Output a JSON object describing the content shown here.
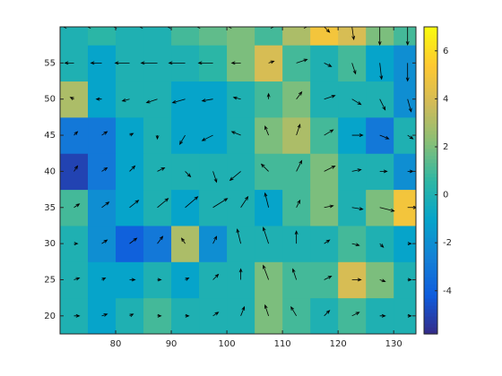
{
  "chart_data": {
    "type": "heatmap",
    "x": [
      72.5,
      77.5,
      82.5,
      87.5,
      92.5,
      97.5,
      102.5,
      107.5,
      112.5,
      117.5,
      122.5,
      127.5,
      132.5
    ],
    "y": [
      20,
      25,
      30,
      35,
      40,
      45,
      50,
      55,
      60
    ],
    "z": [
      [
        0,
        -1,
        0,
        1,
        0,
        0,
        0,
        2,
        1,
        0,
        1,
        0,
        0
      ],
      [
        0,
        -1,
        -1,
        0,
        -1,
        0,
        0,
        2,
        1,
        1,
        4,
        2,
        0
      ],
      [
        0,
        -2,
        -4,
        -3,
        3,
        -2,
        0,
        0,
        0,
        0,
        1,
        0,
        -1
      ],
      [
        1,
        -2,
        -1,
        0,
        -1,
        0,
        0,
        -1,
        1,
        2,
        0,
        2,
        5
      ],
      [
        -5,
        -3,
        -1,
        0,
        0,
        0,
        0,
        1,
        1,
        2,
        0,
        0,
        -2
      ],
      [
        -3,
        -3,
        -1,
        0,
        -1,
        -1,
        0,
        2,
        3,
        1,
        -1,
        -3,
        0
      ],
      [
        3,
        -1,
        0,
        0,
        -1,
        -1,
        0,
        1,
        2,
        0,
        0,
        0,
        -2
      ],
      [
        0,
        -1,
        0,
        0,
        0,
        0.5,
        2,
        4,
        1,
        0,
        1,
        -1,
        -2
      ],
      [
        0,
        0.5,
        0,
        0,
        1,
        1.5,
        2,
        1,
        3,
        5,
        4,
        2,
        1
      ]
    ],
    "u": [
      [
        0.3,
        0.3,
        0.2,
        0.2,
        0.2,
        0.3,
        0.2,
        -0.2,
        -0.3,
        0.3,
        0.4,
        0.3,
        0.2
      ],
      [
        0.3,
        0.2,
        0.3,
        0.2,
        0.2,
        0.3,
        0,
        -0.3,
        -0.2,
        0.4,
        0.5,
        0.3,
        0.2
      ],
      [
        0.2,
        0.3,
        0.4,
        0.3,
        -0.2,
        0.2,
        -0.2,
        -0.3,
        0,
        0.3,
        0.4,
        0.2,
        0.2
      ],
      [
        0.3,
        0.4,
        0.5,
        0.6,
        0.7,
        0.8,
        0.4,
        -0.2,
        0.2,
        0.5,
        0.6,
        0.8,
        0.5
      ],
      [
        0.2,
        0.3,
        0.3,
        0.4,
        0.3,
        0.2,
        -0.6,
        -0.4,
        0.3,
        0.6,
        0.5,
        0.4,
        0.3
      ],
      [
        0.2,
        0.3,
        0.2,
        0,
        -0.3,
        -0.6,
        -0.5,
        -0.2,
        0.2,
        0.5,
        0.6,
        0.5,
        0.3
      ],
      [
        -0.2,
        -0.3,
        -0.4,
        -0.6,
        -0.7,
        -0.6,
        -0.4,
        0,
        0.3,
        0.6,
        0.5,
        0.3,
        0.2
      ],
      [
        -0.5,
        -0.6,
        -0.8,
        -0.9,
        -0.9,
        -0.8,
        -0.5,
        0.3,
        0.6,
        0.4,
        0.2,
        0.1,
        0
      ],
      [
        -0.6,
        -0.8,
        -0.9,
        -1,
        -1,
        -0.9,
        -0.7,
        0.3,
        0.6,
        0.3,
        0.1,
        0,
        0
      ]
    ],
    "v": [
      [
        0,
        0.1,
        0.1,
        0,
        0,
        0.2,
        0.5,
        0.6,
        0.5,
        0.3,
        0.2,
        0,
        0
      ],
      [
        0.1,
        0.1,
        0,
        0,
        0.1,
        0.3,
        0.6,
        0.8,
        0.6,
        0.2,
        0,
        -0.1,
        0
      ],
      [
        0,
        0.2,
        0.3,
        0.4,
        0.3,
        0.4,
        0.8,
        0.9,
        0.7,
        0.2,
        -0.1,
        -0.2,
        0
      ],
      [
        0.2,
        0.3,
        0.4,
        0.5,
        0.6,
        0.5,
        0.6,
        0.8,
        0.4,
        0.1,
        -0.1,
        -0.2,
        0
      ],
      [
        0.3,
        0.2,
        0.3,
        0.2,
        -0.3,
        -0.6,
        -0.5,
        0.4,
        0.6,
        0.3,
        0.1,
        0,
        0
      ],
      [
        0.2,
        0.2,
        0.1,
        -0.2,
        -0.5,
        -0.3,
        0.2,
        0.5,
        0.6,
        0.3,
        0,
        -0.2,
        -0.2
      ],
      [
        0.1,
        0,
        -0.1,
        -0.2,
        -0.2,
        -0.1,
        0.1,
        0.3,
        0.4,
        0.2,
        -0.3,
        -0.6,
        -0.7
      ],
      [
        0,
        0,
        0,
        0,
        0,
        0,
        0,
        0.1,
        0.2,
        -0.2,
        -0.6,
        -0.9,
        -1
      ],
      [
        0,
        0,
        0,
        0,
        0,
        0,
        0,
        0,
        0,
        -0.3,
        -0.7,
        -1,
        -1
      ]
    ],
    "xlim": [
      70,
      134
    ],
    "ylim": [
      17.5,
      60
    ],
    "xticks": [
      80,
      90,
      100,
      110,
      120,
      130
    ],
    "yticks": [
      20,
      25,
      30,
      35,
      40,
      45,
      50,
      55
    ],
    "clim": [
      -5.8,
      7
    ],
    "cticks": [
      -4,
      -2,
      0,
      2,
      4,
      6
    ],
    "colormap": [
      "#352a87",
      "#0f5cdd",
      "#1481d6",
      "#06a4ca",
      "#2eb7a4",
      "#87bf77",
      "#d1bb59",
      "#fec832",
      "#f9fb0e"
    ],
    "arrow_color": "#000000"
  }
}
